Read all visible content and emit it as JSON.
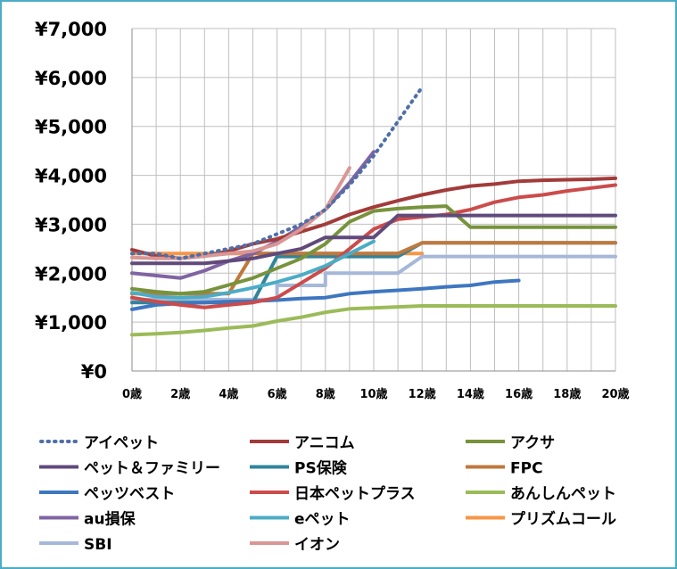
{
  "chart_data": {
    "type": "line",
    "title": "",
    "xlabel": "",
    "ylabel": "",
    "x_ticks": [
      "0歳",
      "2歳",
      "4歳",
      "6歳",
      "8歳",
      "10歳",
      "12歳",
      "14歳",
      "16歳",
      "18歳",
      "20歳"
    ],
    "y_ticks": [
      "¥0",
      "¥1,000",
      "¥2,000",
      "¥3,000",
      "¥4,000",
      "¥5,000",
      "¥6,000",
      "¥7,000"
    ],
    "xlim": [
      0,
      20
    ],
    "ylim": [
      0,
      7000
    ],
    "grid": true,
    "legend_placement": "bottom",
    "series": [
      {
        "name": "アイペット",
        "color": "#4f6fa8",
        "dotted": true,
        "points": [
          [
            0,
            2400
          ],
          [
            1,
            2400
          ],
          [
            2,
            2300
          ],
          [
            3,
            2400
          ],
          [
            4,
            2500
          ],
          [
            5,
            2600
          ],
          [
            6,
            2800
          ],
          [
            7,
            3000
          ],
          [
            8,
            3300
          ],
          [
            9,
            3800
          ],
          [
            10,
            4400
          ],
          [
            11,
            5100
          ],
          [
            12,
            5800
          ]
        ]
      },
      {
        "name": "アニコム",
        "color": "#a23b3a",
        "dotted": false,
        "points": [
          [
            0,
            2480
          ],
          [
            1,
            2350
          ],
          [
            2,
            2300
          ],
          [
            3,
            2350
          ],
          [
            4,
            2450
          ],
          [
            5,
            2600
          ],
          [
            6,
            2700
          ],
          [
            7,
            2850
          ],
          [
            8,
            3000
          ],
          [
            9,
            3200
          ],
          [
            10,
            3350
          ],
          [
            11,
            3480
          ],
          [
            12,
            3600
          ],
          [
            13,
            3700
          ],
          [
            14,
            3780
          ],
          [
            15,
            3820
          ],
          [
            16,
            3880
          ],
          [
            17,
            3900
          ],
          [
            18,
            3910
          ],
          [
            19,
            3920
          ],
          [
            20,
            3940
          ]
        ]
      },
      {
        "name": "アクサ",
        "color": "#77933c",
        "dotted": false,
        "points": [
          [
            0,
            1680
          ],
          [
            1,
            1620
          ],
          [
            2,
            1580
          ],
          [
            3,
            1620
          ],
          [
            4,
            1760
          ],
          [
            5,
            1900
          ],
          [
            6,
            2100
          ],
          [
            7,
            2300
          ],
          [
            8,
            2600
          ],
          [
            9,
            3050
          ],
          [
            10,
            3270
          ],
          [
            11,
            3320
          ],
          [
            12,
            3350
          ],
          [
            13,
            3370
          ],
          [
            14,
            2940
          ],
          [
            15,
            2940
          ],
          [
            20,
            2940
          ]
        ]
      },
      {
        "name": "ペット＆ファミリー",
        "color": "#604a7b",
        "dotted": false,
        "points": [
          [
            0,
            2200
          ],
          [
            1,
            2200
          ],
          [
            2,
            2200
          ],
          [
            3,
            2200
          ],
          [
            4,
            2250
          ],
          [
            5,
            2300
          ],
          [
            6,
            2400
          ],
          [
            7,
            2500
          ],
          [
            8,
            2730
          ],
          [
            9,
            2730
          ],
          [
            10,
            2730
          ],
          [
            11,
            3180
          ],
          [
            12,
            3180
          ],
          [
            13,
            3180
          ],
          [
            20,
            3180
          ]
        ]
      },
      {
        "name": "PS保険",
        "color": "#31849b",
        "dotted": false,
        "points": [
          [
            0,
            1400
          ],
          [
            1,
            1400
          ],
          [
            2,
            1400
          ],
          [
            3,
            1400
          ],
          [
            4,
            1400
          ],
          [
            5,
            1400
          ],
          [
            6,
            2340
          ],
          [
            11,
            2340
          ],
          [
            12,
            2620
          ],
          [
            20,
            2620
          ]
        ]
      },
      {
        "name": "FPC",
        "color": "#c0783c",
        "dotted": false,
        "points": [
          [
            0,
            1580
          ],
          [
            4,
            1580
          ],
          [
            5,
            2400
          ],
          [
            6,
            2400
          ],
          [
            11,
            2400
          ],
          [
            12,
            2620
          ],
          [
            20,
            2620
          ]
        ]
      },
      {
        "name": "ペッツベスト",
        "color": "#3e77c0",
        "dotted": false,
        "points": [
          [
            0,
            1260
          ],
          [
            1,
            1350
          ],
          [
            2,
            1380
          ],
          [
            3,
            1400
          ],
          [
            4,
            1420
          ],
          [
            5,
            1430
          ],
          [
            6,
            1450
          ],
          [
            7,
            1480
          ],
          [
            8,
            1500
          ],
          [
            9,
            1580
          ],
          [
            10,
            1620
          ],
          [
            11,
            1650
          ],
          [
            12,
            1680
          ],
          [
            13,
            1720
          ],
          [
            14,
            1750
          ],
          [
            15,
            1820
          ],
          [
            16,
            1850
          ]
        ]
      },
      {
        "name": "日本ペットプラス",
        "color": "#cc4b4b",
        "dotted": false,
        "points": [
          [
            0,
            1500
          ],
          [
            1,
            1420
          ],
          [
            2,
            1350
          ],
          [
            3,
            1300
          ],
          [
            4,
            1350
          ],
          [
            5,
            1400
          ],
          [
            6,
            1500
          ],
          [
            7,
            1800
          ],
          [
            8,
            2100
          ],
          [
            9,
            2500
          ],
          [
            10,
            2900
          ],
          [
            11,
            3100
          ],
          [
            12,
            3150
          ],
          [
            13,
            3200
          ],
          [
            14,
            3300
          ],
          [
            15,
            3450
          ],
          [
            16,
            3550
          ],
          [
            17,
            3600
          ],
          [
            18,
            3680
          ],
          [
            19,
            3740
          ],
          [
            20,
            3800
          ]
        ]
      },
      {
        "name": "あんしんペット",
        "color": "#9bbb59",
        "dotted": false,
        "points": [
          [
            0,
            740
          ],
          [
            1,
            760
          ],
          [
            2,
            790
          ],
          [
            3,
            830
          ],
          [
            4,
            880
          ],
          [
            5,
            920
          ],
          [
            6,
            1020
          ],
          [
            7,
            1100
          ],
          [
            8,
            1200
          ],
          [
            9,
            1270
          ],
          [
            10,
            1290
          ],
          [
            11,
            1310
          ],
          [
            12,
            1330
          ],
          [
            20,
            1330
          ]
        ]
      },
      {
        "name": "au損保",
        "color": "#8064a2",
        "dotted": false,
        "points": [
          [
            0,
            2000
          ],
          [
            1,
            1950
          ],
          [
            2,
            1900
          ],
          [
            3,
            2050
          ],
          [
            4,
            2250
          ],
          [
            5,
            2400
          ],
          [
            6,
            2650
          ],
          [
            7,
            2950
          ],
          [
            8,
            3300
          ],
          [
            9,
            3850
          ],
          [
            10,
            4480
          ]
        ]
      },
      {
        "name": "eペット",
        "color": "#4bacc6",
        "dotted": false,
        "points": [
          [
            0,
            1600
          ],
          [
            1,
            1520
          ],
          [
            2,
            1500
          ],
          [
            3,
            1520
          ],
          [
            4,
            1600
          ],
          [
            5,
            1700
          ],
          [
            6,
            1820
          ],
          [
            7,
            1960
          ],
          [
            8,
            2150
          ],
          [
            9,
            2400
          ],
          [
            10,
            2650
          ]
        ]
      },
      {
        "name": "プリズムコール",
        "color": "#f79646",
        "dotted": false,
        "points": [
          [
            0,
            2400
          ],
          [
            12,
            2400
          ]
        ]
      },
      {
        "name": "SBI",
        "color": "#a6b8d8",
        "dotted": false,
        "points": [
          [
            0,
            1460
          ],
          [
            6,
            1460
          ],
          [
            6,
            1750
          ],
          [
            8,
            1750
          ],
          [
            8,
            2000
          ],
          [
            11,
            2000
          ],
          [
            12,
            2340
          ],
          [
            20,
            2340
          ]
        ]
      },
      {
        "name": "イオン",
        "color": "#d99694",
        "dotted": false,
        "points": [
          [
            0,
            2320
          ],
          [
            1,
            2300
          ],
          [
            2,
            2300
          ],
          [
            3,
            2350
          ],
          [
            4,
            2400
          ],
          [
            5,
            2450
          ],
          [
            6,
            2600
          ],
          [
            7,
            2900
          ],
          [
            8,
            3300
          ],
          [
            9,
            4150
          ]
        ]
      }
    ]
  }
}
